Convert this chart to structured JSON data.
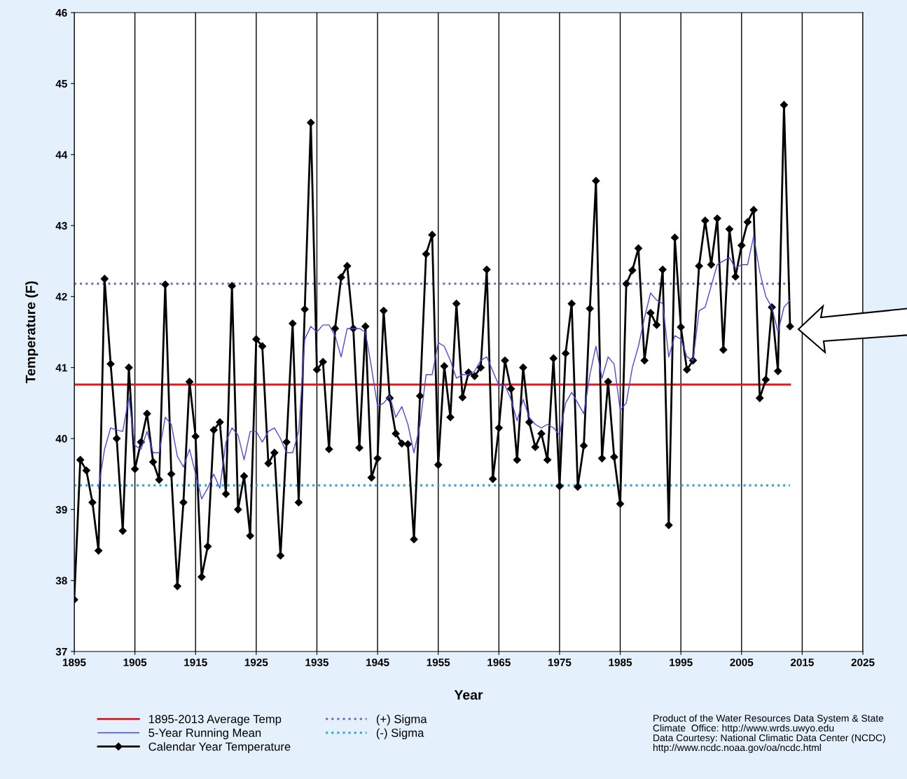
{
  "chart_data": {
    "type": "line",
    "xlabel": "Year",
    "ylabel": "Temperature (F)",
    "xlim": [
      1895,
      2025
    ],
    "xticks": [
      1895,
      1905,
      1915,
      1925,
      1935,
      1945,
      1955,
      1965,
      1975,
      1985,
      1995,
      2005,
      2015,
      2025
    ],
    "ylim": [
      37,
      46
    ],
    "yticks": [
      37,
      38,
      39,
      40,
      41,
      42,
      43,
      44,
      45,
      46
    ],
    "grid": "x",
    "legend": "bottom",
    "ref_lines": [
      {
        "axis": "y",
        "value": 40.76,
        "label": "1895-2013 Average Temp",
        "color": "#e0191e",
        "line_style": "solid"
      },
      {
        "axis": "y",
        "value": 42.18,
        "label": "(+) Sigma",
        "color": "#7f62b5",
        "line_style": "dotted"
      },
      {
        "axis": "y",
        "value": 39.34,
        "label": "(-) Sigma",
        "color": "#2aaac8",
        "line_style": "dotted"
      }
    ],
    "series": [
      {
        "name": "5-Year Running Mean",
        "color": "#4a4ae0",
        "marker": "none",
        "x": [
          1899,
          1900,
          1901,
          1902,
          1903,
          1904,
          1905,
          1906,
          1907,
          1908,
          1909,
          1910,
          1911,
          1912,
          1913,
          1914,
          1915,
          1916,
          1917,
          1918,
          1919,
          1920,
          1921,
          1922,
          1923,
          1924,
          1925,
          1926,
          1927,
          1928,
          1929,
          1930,
          1931,
          1932,
          1933,
          1934,
          1935,
          1936,
          1937,
          1938,
          1939,
          1940,
          1941,
          1942,
          1943,
          1944,
          1945,
          1946,
          1947,
          1948,
          1949,
          1950,
          1951,
          1952,
          1953,
          1954,
          1955,
          1956,
          1957,
          1958,
          1959,
          1960,
          1961,
          1962,
          1963,
          1964,
          1965,
          1966,
          1967,
          1968,
          1969,
          1970,
          1971,
          1972,
          1973,
          1974,
          1975,
          1976,
          1977,
          1978,
          1979,
          1980,
          1981,
          1982,
          1983,
          1984,
          1985,
          1986,
          1987,
          1988,
          1989,
          1990,
          1991,
          1992,
          1993,
          1994,
          1995,
          1996,
          1997,
          1998,
          1999,
          2000,
          2001,
          2002,
          2003,
          2004,
          2005,
          2006,
          2007,
          2008,
          2009,
          2010,
          2011,
          2012,
          2013
        ],
        "values": [
          39.3,
          39.85,
          40.15,
          40.12,
          40.1,
          40.58,
          39.9,
          39.85,
          40.1,
          39.8,
          39.8,
          40.3,
          40.2,
          39.75,
          39.6,
          39.85,
          39.5,
          39.15,
          39.3,
          39.5,
          39.3,
          39.95,
          40.15,
          40.05,
          39.7,
          40.1,
          40.1,
          39.95,
          40.1,
          40.15,
          40.0,
          39.8,
          39.8,
          40.1,
          41.4,
          41.58,
          41.5,
          41.6,
          41.6,
          41.45,
          41.15,
          41.55,
          41.55,
          41.55,
          41.5,
          41.0,
          40.45,
          40.5,
          40.6,
          40.3,
          40.45,
          40.2,
          39.8,
          40.2,
          40.9,
          40.9,
          41.35,
          41.3,
          41.1,
          40.85,
          40.9,
          40.9,
          40.95,
          41.1,
          41.15,
          40.95,
          40.75,
          40.75,
          40.55,
          40.25,
          40.55,
          40.3,
          40.2,
          40.15,
          40.2,
          40.15,
          40.05,
          40.5,
          40.65,
          40.5,
          40.35,
          40.9,
          41.3,
          40.85,
          41.15,
          41.05,
          40.4,
          40.5,
          41.0,
          41.3,
          41.7,
          42.05,
          41.95,
          41.9,
          41.15,
          41.45,
          41.4,
          41.15,
          41.1,
          41.8,
          41.85,
          42.15,
          42.45,
          42.5,
          42.55,
          42.4,
          42.45,
          42.45,
          42.85,
          42.35,
          42.0,
          41.85,
          41.5,
          41.85,
          41.95
        ]
      },
      {
        "name": "Calendar Year Temperature",
        "color": "#000000",
        "marker": "diamond",
        "x": [
          1895,
          1896,
          1897,
          1898,
          1899,
          1900,
          1901,
          1902,
          1903,
          1904,
          1905,
          1906,
          1907,
          1908,
          1909,
          1910,
          1911,
          1912,
          1913,
          1914,
          1915,
          1916,
          1917,
          1918,
          1919,
          1920,
          1921,
          1922,
          1923,
          1924,
          1925,
          1926,
          1927,
          1928,
          1929,
          1930,
          1931,
          1932,
          1933,
          1934,
          1935,
          1936,
          1937,
          1938,
          1939,
          1940,
          1941,
          1942,
          1943,
          1944,
          1945,
          1946,
          1947,
          1948,
          1949,
          1950,
          1951,
          1952,
          1953,
          1954,
          1955,
          1956,
          1957,
          1958,
          1959,
          1960,
          1961,
          1962,
          1963,
          1964,
          1965,
          1966,
          1967,
          1968,
          1969,
          1970,
          1971,
          1972,
          1973,
          1974,
          1975,
          1976,
          1977,
          1978,
          1979,
          1980,
          1981,
          1982,
          1983,
          1984,
          1985,
          1986,
          1987,
          1988,
          1989,
          1990,
          1991,
          1992,
          1993,
          1994,
          1995,
          1996,
          1997,
          1998,
          1999,
          2000,
          2001,
          2002,
          2003,
          2004,
          2005,
          2006,
          2007,
          2008,
          2009,
          2010,
          2011,
          2012,
          2013
        ],
        "values": [
          37.73,
          39.7,
          39.55,
          39.1,
          38.42,
          42.25,
          41.05,
          40.0,
          38.7,
          41.0,
          39.57,
          39.95,
          40.35,
          39.67,
          39.42,
          42.17,
          39.5,
          37.92,
          39.1,
          40.8,
          40.03,
          38.05,
          38.48,
          40.12,
          40.23,
          39.22,
          42.15,
          39.0,
          39.47,
          38.63,
          41.4,
          41.3,
          39.65,
          39.8,
          38.35,
          39.95,
          41.62,
          39.1,
          41.82,
          44.45,
          40.97,
          41.08,
          39.85,
          41.55,
          42.27,
          42.43,
          41.55,
          39.87,
          41.58,
          39.45,
          39.72,
          41.8,
          40.57,
          40.07,
          39.93,
          39.92,
          38.58,
          40.6,
          42.6,
          42.87,
          39.63,
          41.02,
          40.3,
          41.9,
          40.58,
          40.93,
          40.88,
          41.0,
          42.38,
          39.43,
          40.15,
          41.1,
          40.7,
          39.7,
          41.0,
          40.23,
          39.88,
          40.07,
          39.7,
          41.13,
          39.33,
          41.2,
          41.9,
          39.32,
          39.9,
          41.83,
          43.63,
          39.72,
          40.8,
          39.74,
          39.08,
          42.18,
          42.37,
          42.68,
          41.1,
          41.77,
          41.6,
          42.38,
          38.78,
          42.83,
          41.57,
          40.97,
          41.1,
          42.43,
          43.07,
          42.45,
          43.1,
          41.25,
          42.95,
          42.28,
          42.72,
          43.05,
          43.22,
          40.57,
          40.83,
          41.85,
          40.95,
          44.7,
          41.58
        ]
      }
    ],
    "annotations": [
      "Product of the Water Resources Data System & State\nClimate  Office: http://www.wrds.uwyo.edu\nData Courtesy: National Climatic Data Center (NCDC)\nhttp://www.ncdc.noaa.gov/oa/ncdc.html"
    ]
  }
}
